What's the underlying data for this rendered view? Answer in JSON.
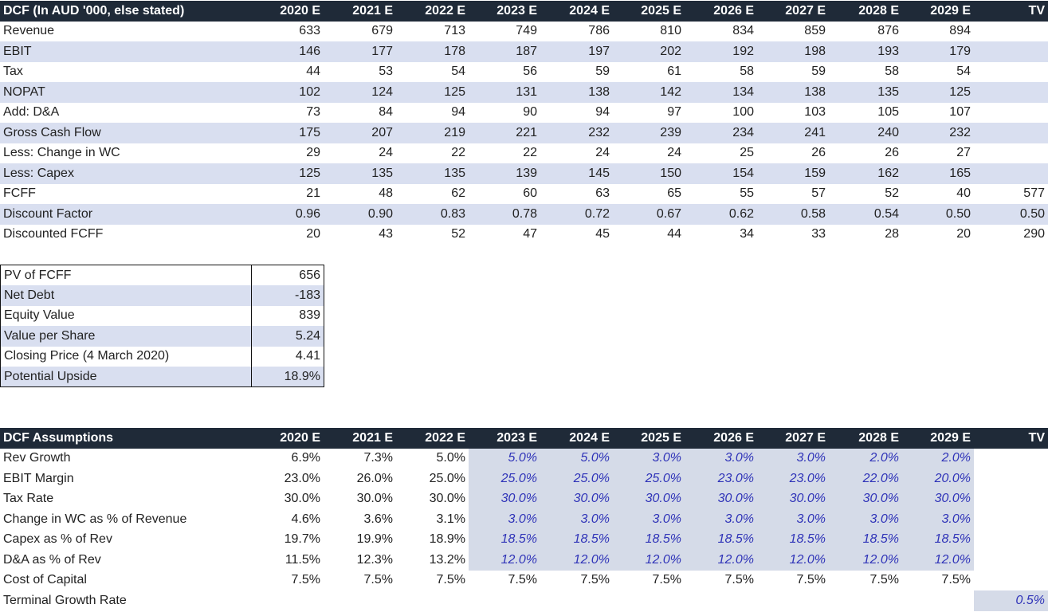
{
  "dcf": {
    "title": "DCF (In AUD '000, else stated)",
    "columns": [
      "2020 E",
      "2021 E",
      "2022 E",
      "2023 E",
      "2024 E",
      "2025 E",
      "2026 E",
      "2027 E",
      "2028 E",
      "2029 E",
      "TV"
    ],
    "rows": [
      {
        "label": "Revenue",
        "values": [
          "633",
          "679",
          "713",
          "749",
          "786",
          "810",
          "834",
          "859",
          "876",
          "894",
          ""
        ]
      },
      {
        "label": "EBIT",
        "values": [
          "146",
          "177",
          "178",
          "187",
          "197",
          "202",
          "192",
          "198",
          "193",
          "179",
          ""
        ]
      },
      {
        "label": "Tax",
        "values": [
          "44",
          "53",
          "54",
          "56",
          "59",
          "61",
          "58",
          "59",
          "58",
          "54",
          ""
        ]
      },
      {
        "label": "NOPAT",
        "values": [
          "102",
          "124",
          "125",
          "131",
          "138",
          "142",
          "134",
          "138",
          "135",
          "125",
          ""
        ]
      },
      {
        "label": "Add: D&A",
        "values": [
          "73",
          "84",
          "94",
          "90",
          "94",
          "97",
          "100",
          "103",
          "105",
          "107",
          ""
        ]
      },
      {
        "label": "Gross Cash Flow",
        "values": [
          "175",
          "207",
          "219",
          "221",
          "232",
          "239",
          "234",
          "241",
          "240",
          "232",
          ""
        ]
      },
      {
        "label": "Less: Change in WC",
        "values": [
          "29",
          "24",
          "22",
          "22",
          "24",
          "24",
          "25",
          "26",
          "26",
          "27",
          ""
        ]
      },
      {
        "label": "Less: Capex",
        "values": [
          "125",
          "135",
          "135",
          "139",
          "145",
          "150",
          "154",
          "159",
          "162",
          "165",
          ""
        ]
      },
      {
        "label": "FCFF",
        "values": [
          "21",
          "48",
          "62",
          "60",
          "63",
          "65",
          "55",
          "57",
          "52",
          "40",
          "577"
        ]
      },
      {
        "label": "Discount Factor",
        "values": [
          "0.96",
          "0.90",
          "0.83",
          "0.78",
          "0.72",
          "0.67",
          "0.62",
          "0.58",
          "0.54",
          "0.50",
          "0.50"
        ]
      },
      {
        "label": "Discounted FCFF",
        "values": [
          "20",
          "43",
          "52",
          "47",
          "45",
          "44",
          "34",
          "33",
          "28",
          "20",
          "290"
        ]
      }
    ]
  },
  "summary": {
    "rows": [
      {
        "label": "PV of FCFF",
        "value": "656"
      },
      {
        "label": "Net Debt",
        "value": "-183"
      },
      {
        "label": "Equity Value",
        "value": "839"
      },
      {
        "label": "Value per Share",
        "value": "5.24"
      },
      {
        "label": "Closing Price (4 March 2020)",
        "value": "4.41"
      },
      {
        "label": "Potential Upside",
        "value": "18.9%"
      }
    ]
  },
  "assumptions": {
    "title": "DCF Assumptions",
    "columns": [
      "2020 E",
      "2021 E",
      "2022 E",
      "2023 E",
      "2024 E",
      "2025 E",
      "2026 E",
      "2027 E",
      "2028 E",
      "2029 E",
      "TV"
    ],
    "rows": [
      {
        "label": "Rev Growth",
        "values": [
          "6.9%",
          "7.3%",
          "5.0%",
          "5.0%",
          "5.0%",
          "3.0%",
          "3.0%",
          "3.0%",
          "2.0%",
          "2.0%",
          ""
        ]
      },
      {
        "label": "EBIT Margin",
        "values": [
          "23.0%",
          "26.0%",
          "25.0%",
          "25.0%",
          "25.0%",
          "25.0%",
          "23.0%",
          "23.0%",
          "22.0%",
          "20.0%",
          ""
        ]
      },
      {
        "label": "Tax Rate",
        "values": [
          "30.0%",
          "30.0%",
          "30.0%",
          "30.0%",
          "30.0%",
          "30.0%",
          "30.0%",
          "30.0%",
          "30.0%",
          "30.0%",
          ""
        ]
      },
      {
        "label": "Change in WC as % of Revenue",
        "values": [
          "4.6%",
          "3.6%",
          "3.1%",
          "3.0%",
          "3.0%",
          "3.0%",
          "3.0%",
          "3.0%",
          "3.0%",
          "3.0%",
          ""
        ]
      },
      {
        "label": "Capex as % of Rev",
        "values": [
          "19.7%",
          "19.9%",
          "18.9%",
          "18.5%",
          "18.5%",
          "18.5%",
          "18.5%",
          "18.5%",
          "18.5%",
          "18.5%",
          ""
        ]
      },
      {
        "label": "D&A as % of Rev",
        "values": [
          "11.5%",
          "12.3%",
          "13.2%",
          "12.0%",
          "12.0%",
          "12.0%",
          "12.0%",
          "12.0%",
          "12.0%",
          "12.0%",
          ""
        ]
      },
      {
        "label": "Cost of Capital",
        "values": [
          "7.5%",
          "7.5%",
          "7.5%",
          "7.5%",
          "7.5%",
          "7.5%",
          "7.5%",
          "7.5%",
          "7.5%",
          "7.5%",
          ""
        ]
      },
      {
        "label": "Terminal Growth Rate",
        "values": [
          "",
          "",
          "",
          "",
          "",
          "",
          "",
          "",
          "",
          "",
          "0.5%"
        ]
      }
    ]
  },
  "colors": {
    "header_bg": "#1f2a38",
    "band": "#d9dff0",
    "input_fill": "#d5dbe8",
    "input_text": "#2f33b8"
  }
}
